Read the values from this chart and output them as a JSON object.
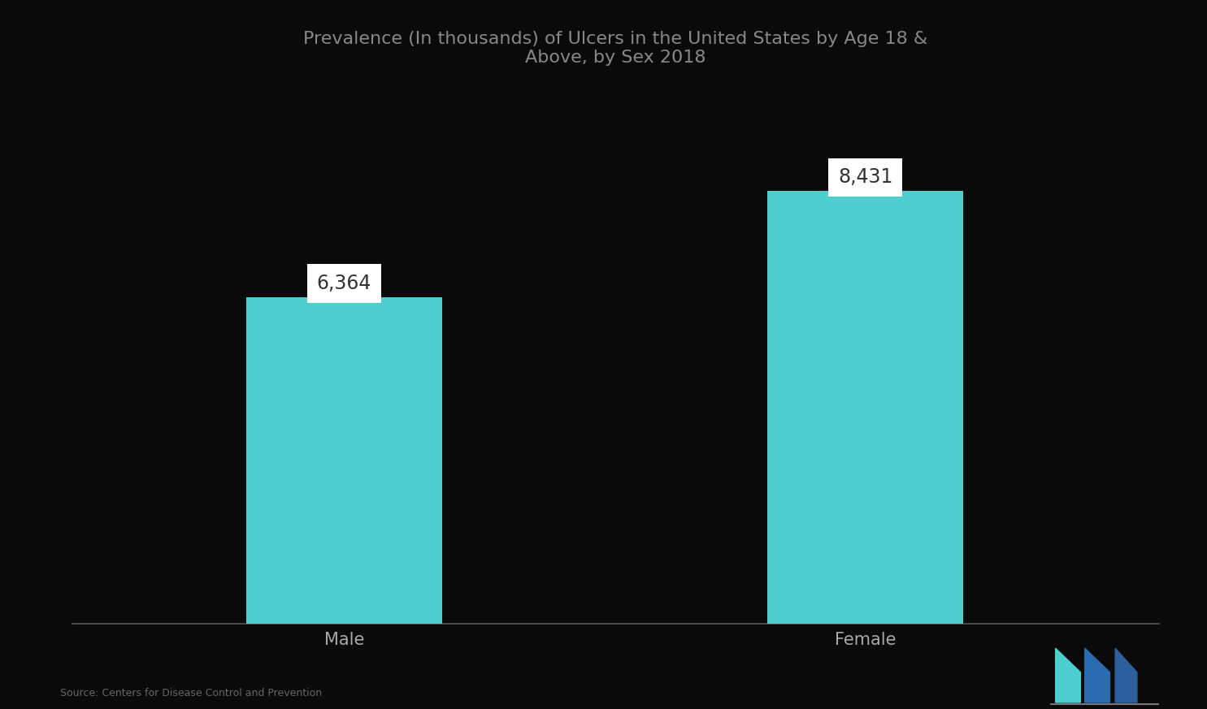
{
  "title_line1": "Prevalence (In thousands) of Ulcers in the United States by Age 18 &",
  "title_line2": "Above, by Sex 2018",
  "categories": [
    "Male",
    "Female"
  ],
  "values": [
    6364,
    8431
  ],
  "bar_color": "#4ECECE",
  "background_color": "#0a0a0a",
  "title_color": "#888888",
  "label_color": "#aaaaaa",
  "annotation_text_color": "#333333",
  "source_text": "Source: Centers for Disease Control and Prevention",
  "ylim": [
    0,
    10500
  ],
  "bar_width": 0.18,
  "x_positions": [
    0.25,
    0.73
  ]
}
